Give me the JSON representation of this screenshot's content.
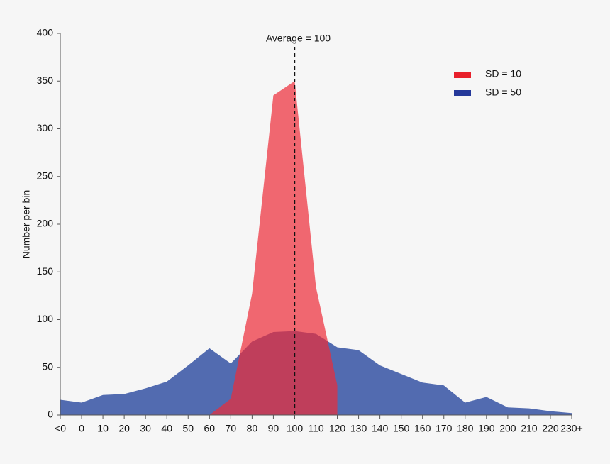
{
  "chart_data": {
    "type": "area",
    "y_label": "Number per bin",
    "categories": [
      "<0",
      "0",
      "10",
      "20",
      "30",
      "40",
      "50",
      "60",
      "70",
      "80",
      "90",
      "100",
      "110",
      "120",
      "130",
      "140",
      "150",
      "160",
      "170",
      "180",
      "190",
      "200",
      "210",
      "220",
      "230+"
    ],
    "series": [
      {
        "name": "SD = 50",
        "color": "#3552a3",
        "legend_color": "#25399a",
        "values": [
          16,
          13,
          21,
          22,
          28,
          35,
          52,
          70,
          54,
          77,
          87,
          88,
          85,
          71,
          68,
          52,
          43,
          34,
          31,
          13,
          19,
          8,
          7,
          4,
          2
        ]
      },
      {
        "name": "SD = 10",
        "color": "#ee2b38",
        "legend_color": "#e8202b",
        "values": [
          null,
          null,
          null,
          null,
          null,
          null,
          null,
          0,
          17,
          127,
          335,
          350,
          134,
          31,
          null,
          null,
          null,
          null,
          null,
          null,
          null,
          null,
          null,
          null,
          null
        ]
      }
    ],
    "legend_order": [
      1,
      0
    ],
    "annotation": {
      "text": "Average = 100",
      "x": "100"
    },
    "ylim": [
      0,
      400
    ],
    "yticks": [
      0,
      50,
      100,
      150,
      200,
      250,
      300,
      350,
      400
    ],
    "legend_position": "upper right"
  }
}
